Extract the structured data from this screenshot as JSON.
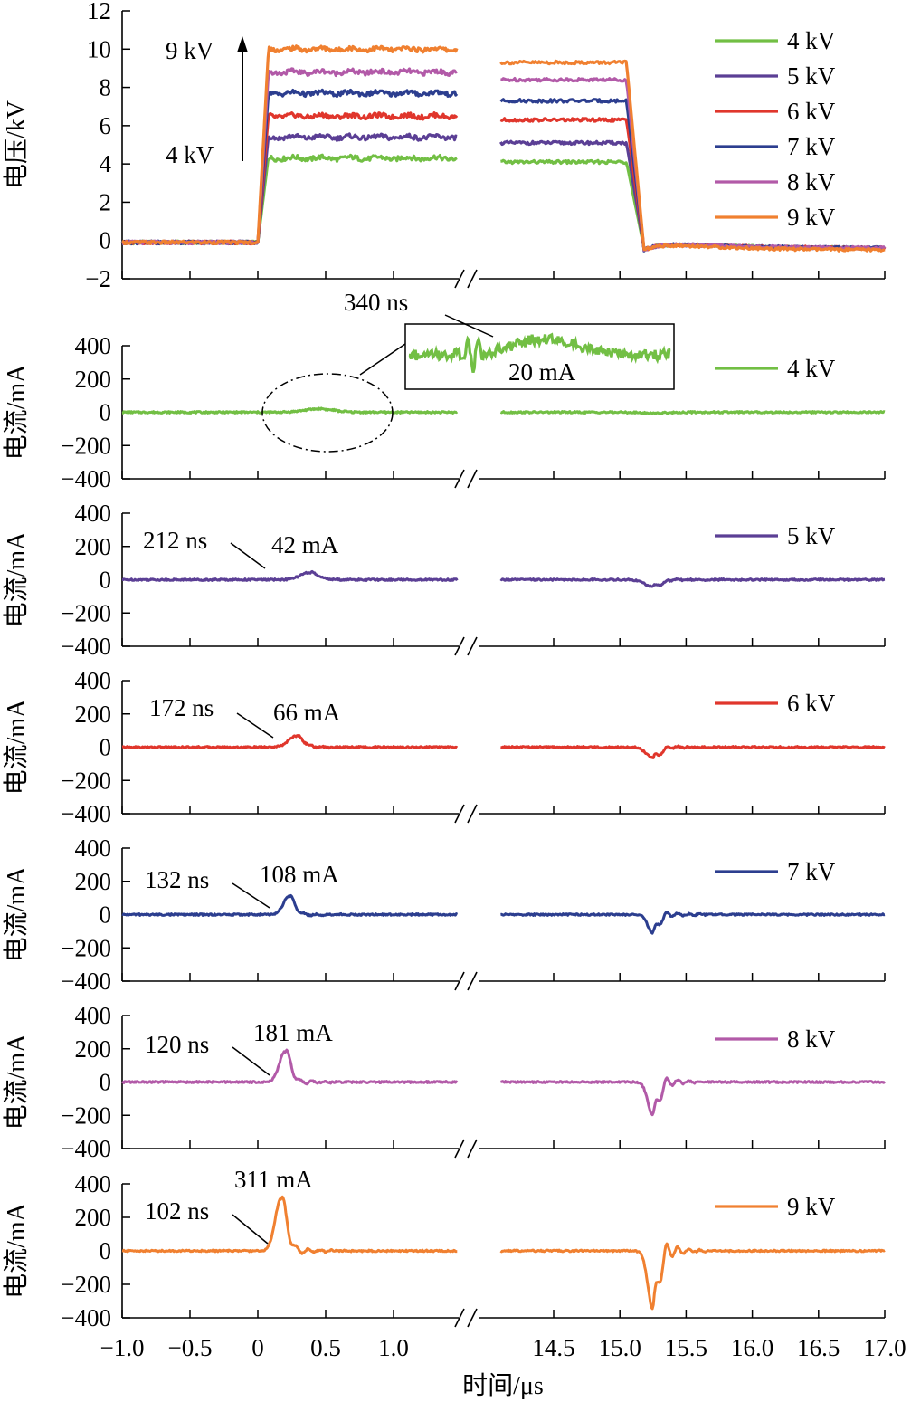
{
  "chart_data": {
    "type": "line",
    "x_axis": {
      "label": "时间/μs",
      "break": true,
      "segments": [
        {
          "range": [
            -1.0,
            1.5
          ],
          "ticks": [
            -1.0,
            -0.5,
            0,
            0.5,
            1.0
          ],
          "tick_labels": [
            "−1.0",
            "−0.5",
            "0",
            "0.5",
            "1.0"
          ]
        },
        {
          "range": [
            14.0,
            17.0
          ],
          "ticks": [
            14.5,
            15.0,
            15.5,
            16.0,
            16.5,
            17.0
          ],
          "tick_labels": [
            "14.5",
            "15.0",
            "15.5",
            "16.0",
            "16.5",
            "17.0"
          ]
        }
      ]
    },
    "panels": [
      {
        "id": "voltage",
        "ylabel": "电压/kV",
        "ylim": [
          -2,
          12
        ],
        "yticks": [
          -2,
          0,
          2,
          4,
          6,
          8,
          10,
          12
        ],
        "ytick_labels": [
          "−2",
          "0",
          "2",
          "4",
          "6",
          "8",
          "10",
          "12"
        ],
        "series": [
          {
            "name": "4 kV",
            "color": "#72bf44",
            "level_on": 4.3,
            "level_on_late": 4.1,
            "level_off": -0.1,
            "level_end": -0.4
          },
          {
            "name": "5 kV",
            "color": "#5b3f95",
            "level_on": 5.4,
            "level_on_late": 5.1,
            "level_off": -0.1,
            "level_end": -0.4
          },
          {
            "name": "6 kV",
            "color": "#e0362c",
            "level_on": 6.5,
            "level_on_late": 6.3,
            "level_off": -0.1,
            "level_end": -0.4
          },
          {
            "name": "7 kV",
            "color": "#2c3e8f",
            "level_on": 7.7,
            "level_on_late": 7.3,
            "level_off": -0.1,
            "level_end": -0.4
          },
          {
            "name": "8 kV",
            "color": "#b25aa8",
            "level_on": 8.8,
            "level_on_late": 8.4,
            "level_off": -0.1,
            "level_end": -0.4
          },
          {
            "name": "9 kV",
            "color": "#f08030",
            "level_on": 10.0,
            "level_on_late": 9.3,
            "level_off": -0.1,
            "level_end": -0.5
          }
        ],
        "annotations": {
          "arrow_top": "9 kV",
          "arrow_bottom": "4 kV"
        }
      },
      {
        "id": "current-4kv",
        "ylabel": "电流/mA",
        "ylim": [
          -400,
          400
        ],
        "yticks": [
          -400,
          -200,
          0,
          200,
          400
        ],
        "ytick_labels": [
          "−400",
          "−200",
          "0",
          "200",
          "400"
        ],
        "series": {
          "name": "4 kV",
          "color": "#72bf44",
          "rise_time_ns": 340,
          "peak_mA": 20,
          "peak_time_us": 0.45,
          "fall_peak_mA": -5
        },
        "annotations": {
          "time": "340 ns",
          "peak": "20 mA"
        }
      },
      {
        "id": "current-5kv",
        "ylabel": "电流/mA",
        "ylim": [
          -400,
          400
        ],
        "yticks": [
          -400,
          -200,
          0,
          200,
          400
        ],
        "ytick_labels": [
          "−400",
          "−200",
          "0",
          "200",
          "400"
        ],
        "series": {
          "name": "5 kV",
          "color": "#5b3f95",
          "rise_time_ns": 212,
          "peak_mA": 42,
          "peak_time_us": 0.38,
          "fall_peak_mA": -42
        },
        "annotations": {
          "time": "212 ns",
          "peak": "42 mA"
        }
      },
      {
        "id": "current-6kv",
        "ylabel": "电流/mA",
        "ylim": [
          -400,
          400
        ],
        "yticks": [
          -400,
          -200,
          0,
          200,
          400
        ],
        "ytick_labels": [
          "−400",
          "−200",
          "0",
          "200",
          "400"
        ],
        "series": {
          "name": "6 kV",
          "color": "#e0362c",
          "rise_time_ns": 172,
          "peak_mA": 66,
          "peak_time_us": 0.28,
          "fall_peak_mA": -66
        },
        "annotations": {
          "time": "172 ns",
          "peak": "66 mA"
        }
      },
      {
        "id": "current-7kv",
        "ylabel": "电流/mA",
        "ylim": [
          -400,
          400
        ],
        "yticks": [
          -400,
          -200,
          0,
          200,
          400
        ],
        "ytick_labels": [
          "−400",
          "−200",
          "0",
          "200",
          "400"
        ],
        "series": {
          "name": "7 kV",
          "color": "#2c3e8f",
          "rise_time_ns": 132,
          "peak_mA": 108,
          "peak_time_us": 0.23,
          "fall_peak_mA": -110
        },
        "annotations": {
          "time": "132 ns",
          "peak": "108 mA"
        }
      },
      {
        "id": "current-8kv",
        "ylabel": "电流/mA",
        "ylim": [
          -400,
          400
        ],
        "yticks": [
          -400,
          -200,
          0,
          200,
          400
        ],
        "ytick_labels": [
          "−400",
          "−200",
          "0",
          "200",
          "400"
        ],
        "series": {
          "name": "8 kV",
          "color": "#b25aa8",
          "rise_time_ns": 120,
          "peak_mA": 181,
          "peak_time_us": 0.2,
          "fall_peak_mA": -200
        },
        "annotations": {
          "time": "120 ns",
          "peak": "181 mA"
        }
      },
      {
        "id": "current-9kv",
        "ylabel": "电流/mA",
        "ylim": [
          -400,
          400
        ],
        "yticks": [
          -400,
          -200,
          0,
          200,
          400
        ],
        "ytick_labels": [
          "−400",
          "−200",
          "0",
          "200",
          "400"
        ],
        "series": {
          "name": "9 kV",
          "color": "#f08030",
          "rise_time_ns": 102,
          "peak_mA": 311,
          "peak_time_us": 0.17,
          "fall_peak_mA": -350
        },
        "annotations": {
          "time": "102 ns",
          "peak": "311 mA"
        }
      }
    ]
  }
}
